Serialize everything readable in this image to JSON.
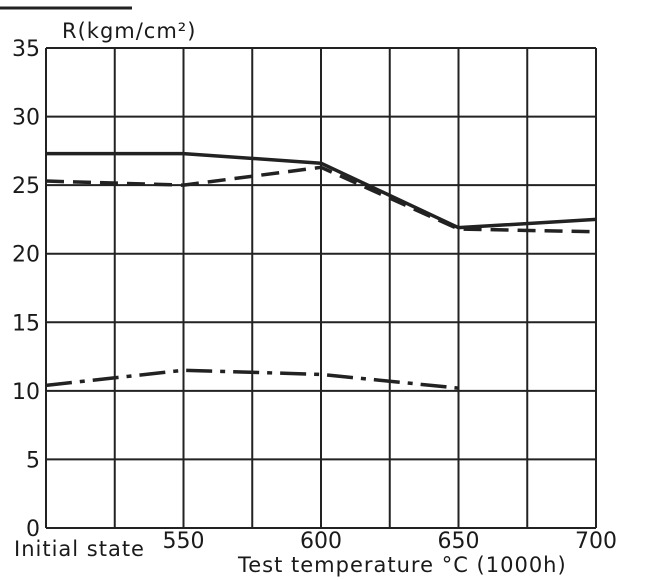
{
  "chart_data": {
    "type": "line",
    "title": "",
    "ylabel": "R(kgm/cm²)",
    "xlabel": "Test temperature °C (1000h)",
    "x_start_label": "Initial state",
    "ylim": [
      0,
      35
    ],
    "yticks": [
      "0",
      "5",
      "10",
      "15",
      "20",
      "25",
      "30",
      "35"
    ],
    "xlim": [
      500,
      700
    ],
    "xticks": [
      {
        "value": 550,
        "label": "550"
      },
      {
        "value": 600,
        "label": "600"
      },
      {
        "value": 650,
        "label": "650"
      },
      {
        "value": 700,
        "label": "700"
      }
    ],
    "grid": true,
    "series": [
      {
        "style": "solid",
        "points": [
          [
            500,
            27.3
          ],
          [
            550,
            27.3
          ],
          [
            600,
            26.6
          ],
          [
            650,
            21.9
          ],
          [
            700,
            22.5
          ]
        ]
      },
      {
        "style": "dashed",
        "points": [
          [
            500,
            25.3
          ],
          [
            550,
            25.0
          ],
          [
            600,
            26.3
          ],
          [
            650,
            21.8
          ],
          [
            700,
            21.6
          ]
        ]
      },
      {
        "style": "dash-dot",
        "points": [
          [
            500,
            10.4
          ],
          [
            550,
            11.5
          ],
          [
            600,
            11.2
          ],
          [
            650,
            10.2
          ]
        ]
      }
    ]
  }
}
